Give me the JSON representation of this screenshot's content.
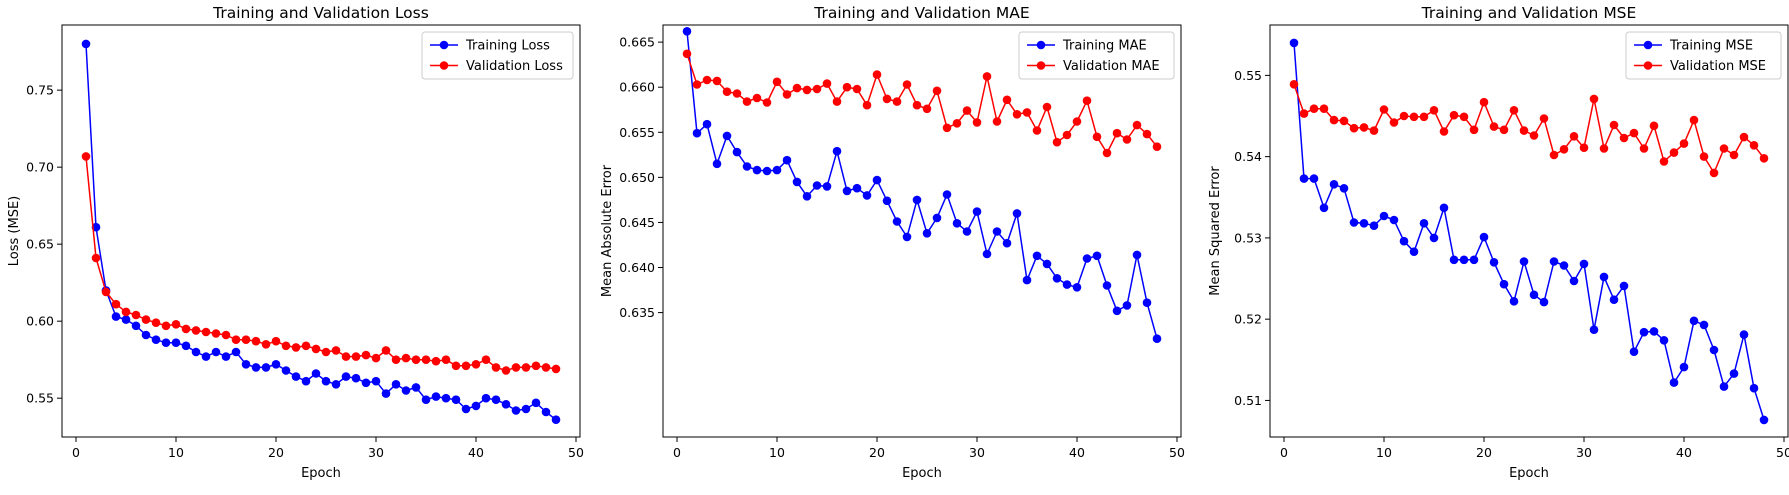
{
  "colors": {
    "train": "#0000ff",
    "val": "#ff0000"
  },
  "chart_data": [
    {
      "type": "line",
      "title": "Training and Validation Loss",
      "xlabel": "Epoch",
      "ylabel": "Loss (MSE)",
      "xlim": [
        -1.4,
        50.4
      ],
      "ylim": [
        0.5248,
        0.7923
      ],
      "xticks": [
        0,
        10,
        20,
        30,
        40,
        50
      ],
      "yticks": [
        0.55,
        0.6,
        0.65,
        0.7,
        0.75
      ],
      "ytick_labels": [
        "0.55",
        "0.60",
        "0.65",
        "0.70",
        "0.75"
      ],
      "grid": false,
      "legend": "top-right",
      "x": [
        1,
        2,
        3,
        4,
        5,
        6,
        7,
        8,
        9,
        10,
        11,
        12,
        13,
        14,
        15,
        16,
        17,
        18,
        19,
        20,
        21,
        22,
        23,
        24,
        25,
        26,
        27,
        28,
        29,
        30,
        31,
        32,
        33,
        34,
        35,
        36,
        37,
        38,
        39,
        40,
        41,
        42,
        43,
        44,
        45,
        46,
        47,
        48
      ],
      "series": [
        {
          "name": "Training Loss",
          "color": "#0000ff",
          "values": [
            0.78,
            0.661,
            0.62,
            0.603,
            0.601,
            0.597,
            0.591,
            0.588,
            0.586,
            0.586,
            0.584,
            0.58,
            0.577,
            0.58,
            0.577,
            0.58,
            0.572,
            0.57,
            0.57,
            0.572,
            0.568,
            0.564,
            0.561,
            0.566,
            0.561,
            0.559,
            0.564,
            0.563,
            0.56,
            0.561,
            0.553,
            0.559,
            0.555,
            0.557,
            0.549,
            0.551,
            0.55,
            0.549,
            0.543,
            0.545,
            0.55,
            0.549,
            0.546,
            0.542,
            0.543,
            0.547,
            0.541,
            0.536
          ]
        },
        {
          "name": "Validation Loss",
          "color": "#ff0000",
          "values": [
            0.707,
            0.641,
            0.619,
            0.611,
            0.606,
            0.604,
            0.601,
            0.599,
            0.597,
            0.598,
            0.595,
            0.594,
            0.593,
            0.592,
            0.591,
            0.588,
            0.588,
            0.587,
            0.585,
            0.587,
            0.584,
            0.583,
            0.584,
            0.582,
            0.58,
            0.581,
            0.577,
            0.577,
            0.578,
            0.576,
            0.581,
            0.575,
            0.576,
            0.575,
            0.575,
            0.574,
            0.575,
            0.571,
            0.571,
            0.572,
            0.575,
            0.57,
            0.568,
            0.57,
            0.57,
            0.571,
            0.57,
            0.569
          ]
        }
      ]
    },
    {
      "type": "line",
      "title": "Training and Validation MAE",
      "xlabel": "Epoch",
      "ylabel": "Mean Absolute Error",
      "xlim": [
        -1.4,
        50.4
      ],
      "ylim": [
        0.6212,
        0.6669
      ],
      "xticks": [
        0,
        10,
        20,
        30,
        40,
        50
      ],
      "yticks": [
        0.635,
        0.64,
        0.645,
        0.65,
        0.655,
        0.66,
        0.665
      ],
      "ytick_labels": [
        "0.635",
        "0.640",
        "0.645",
        "0.650",
        "0.655",
        "0.660",
        "0.665"
      ],
      "grid": false,
      "legend": "top-right",
      "x": [
        1,
        2,
        3,
        4,
        5,
        6,
        7,
        8,
        9,
        10,
        11,
        12,
        13,
        14,
        15,
        16,
        17,
        18,
        19,
        20,
        21,
        22,
        23,
        24,
        25,
        26,
        27,
        28,
        29,
        30,
        31,
        32,
        33,
        34,
        35,
        36,
        37,
        38,
        39,
        40,
        41,
        42,
        43,
        44,
        45,
        46,
        47,
        48
      ],
      "series": [
        {
          "name": "Training MAE",
          "color": "#0000ff",
          "values": [
            0.6662,
            0.6549,
            0.6559,
            0.6515,
            0.6546,
            0.6528,
            0.6512,
            0.6508,
            0.6507,
            0.6508,
            0.6519,
            0.6495,
            0.6479,
            0.6491,
            0.649,
            0.6529,
            0.6485,
            0.6488,
            0.648,
            0.6497,
            0.6474,
            0.6451,
            0.6434,
            0.6475,
            0.6438,
            0.6455,
            0.6481,
            0.6449,
            0.644,
            0.6462,
            0.6415,
            0.644,
            0.6427,
            0.646,
            0.6386,
            0.6413,
            0.6404,
            0.6388,
            0.6381,
            0.6378,
            0.641,
            0.6413,
            0.638,
            0.6352,
            0.6358,
            0.6414,
            0.6361,
            0.6321
          ]
        },
        {
          "name": "Validation MAE",
          "color": "#ff0000",
          "values": [
            0.6637,
            0.6603,
            0.6608,
            0.6607,
            0.6595,
            0.6593,
            0.6584,
            0.6588,
            0.6583,
            0.6606,
            0.6592,
            0.6599,
            0.6597,
            0.6598,
            0.6604,
            0.6584,
            0.66,
            0.6598,
            0.658,
            0.6614,
            0.6587,
            0.6584,
            0.6603,
            0.658,
            0.6576,
            0.6596,
            0.6555,
            0.656,
            0.6574,
            0.6561,
            0.6612,
            0.6562,
            0.6586,
            0.657,
            0.6572,
            0.6552,
            0.6578,
            0.6539,
            0.6547,
            0.6562,
            0.6585,
            0.6545,
            0.6527,
            0.6549,
            0.6542,
            0.6558,
            0.6548,
            0.6534
          ]
        }
      ]
    },
    {
      "type": "line",
      "title": "Training and Validation MSE",
      "xlabel": "Epoch",
      "ylabel": "Mean Squared Error",
      "xlim": [
        -1.4,
        50.4
      ],
      "ylim": [
        0.5055,
        0.5562
      ],
      "xticks": [
        0,
        10,
        20,
        30,
        40,
        50
      ],
      "yticks": [
        0.51,
        0.52,
        0.53,
        0.54,
        0.55
      ],
      "ytick_labels": [
        "0.51",
        "0.52",
        "0.53",
        "0.54",
        "0.55"
      ],
      "grid": false,
      "legend": "top-right",
      "x": [
        1,
        2,
        3,
        4,
        5,
        6,
        7,
        8,
        9,
        10,
        11,
        12,
        13,
        14,
        15,
        16,
        17,
        18,
        19,
        20,
        21,
        22,
        23,
        24,
        25,
        26,
        27,
        28,
        29,
        30,
        31,
        32,
        33,
        34,
        35,
        36,
        37,
        38,
        39,
        40,
        41,
        42,
        43,
        44,
        45,
        46,
        47,
        48
      ],
      "series": [
        {
          "name": "Training MSE",
          "color": "#0000ff",
          "values": [
            0.554,
            0.5373,
            0.5373,
            0.5337,
            0.5366,
            0.5361,
            0.5319,
            0.5318,
            0.5315,
            0.5327,
            0.5322,
            0.5296,
            0.5283,
            0.5318,
            0.53,
            0.5337,
            0.5273,
            0.5273,
            0.5273,
            0.5301,
            0.527,
            0.5243,
            0.5222,
            0.5271,
            0.523,
            0.5221,
            0.5271,
            0.5266,
            0.5247,
            0.5268,
            0.5187,
            0.5252,
            0.5224,
            0.5241,
            0.516,
            0.5184,
            0.5185,
            0.5174,
            0.5122,
            0.5141,
            0.5198,
            0.5193,
            0.5162,
            0.5117,
            0.5133,
            0.5181,
            0.5115,
            0.5076
          ]
        },
        {
          "name": "Validation MSE",
          "color": "#ff0000",
          "values": [
            0.5489,
            0.5453,
            0.5459,
            0.5459,
            0.5445,
            0.5444,
            0.5435,
            0.5436,
            0.5432,
            0.5458,
            0.5442,
            0.545,
            0.5449,
            0.5449,
            0.5457,
            0.5431,
            0.5451,
            0.5449,
            0.5433,
            0.5467,
            0.5437,
            0.5433,
            0.5457,
            0.5432,
            0.5426,
            0.5447,
            0.5402,
            0.5409,
            0.5425,
            0.5411,
            0.5471,
            0.541,
            0.5439,
            0.5423,
            0.5429,
            0.541,
            0.5438,
            0.5394,
            0.5405,
            0.5416,
            0.5445,
            0.54,
            0.538,
            0.541,
            0.5402,
            0.5424,
            0.5414,
            0.5398
          ]
        }
      ]
    }
  ]
}
